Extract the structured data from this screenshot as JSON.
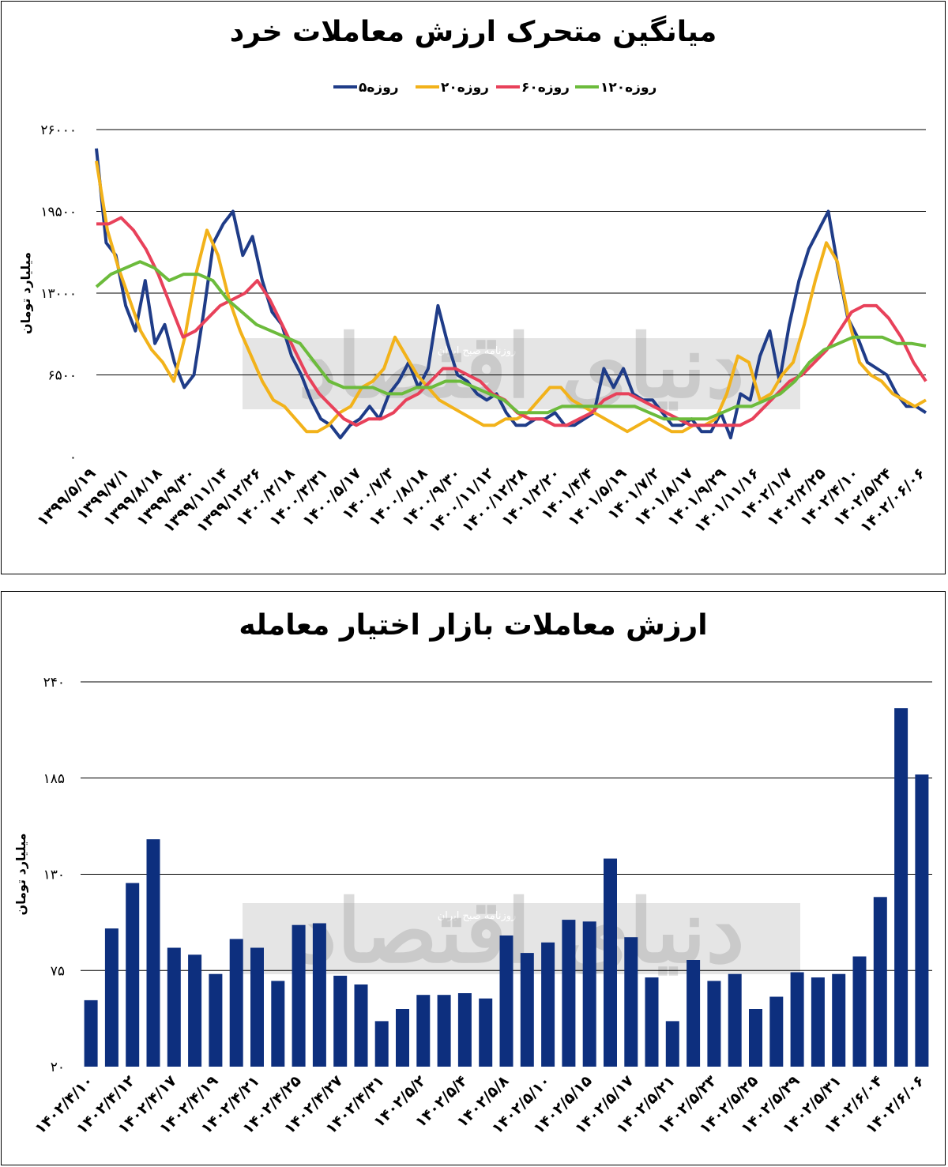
{
  "chart_data": [
    {
      "type": "line",
      "title": "میانگین متحرک ارزش معاملات خرد",
      "ylabel": "میلیارد تومان",
      "ylim": [
        0,
        26000
      ],
      "yticks": [
        0,
        6500,
        13000,
        19500,
        26000
      ],
      "ytick_labels": [
        "۰",
        "۶۵۰۰",
        "۱۳۰۰۰",
        "۱۹۵۰۰",
        "۲۶۰۰۰"
      ],
      "legend": "top",
      "grid": true,
      "x_labels": [
        "۱۳۹۹/۵/۱۹",
        "۱۳۹۹/۷/۱",
        "۱۳۹۹/۸/۱۸",
        "۱۳۹۹/۹/۳۰",
        "۱۳۹۹/۱۱/۱۴",
        "۱۳۹۹/۱۲/۲۶",
        "۱۴۰۰/۲/۱۸",
        "۱۴۰۰/۳/۳۱",
        "۱۴۰۰/۵/۱۷",
        "۱۴۰۰/۷/۳",
        "۱۴۰۰/۸/۱۸",
        "۱۴۰۰/۹/۳۰",
        "۱۴۰۰/۱۱/۱۲",
        "۱۴۰۰/۱۲/۲۸",
        "۱۴۰۱/۲/۲۰",
        "۱۴۰۱/۴/۴",
        "۱۴۰۱/۵/۱۹",
        "۱۴۰۱/۷/۲",
        "۱۴۰۱/۸/۱۷",
        "۱۴۰۱/۹/۲۹",
        "۱۴۰۱/۱۱/۱۶",
        "۱۴۰۲/۱/۷",
        "۱۴۰۲/۲/۲۵",
        "۱۴۰۲/۴/۱۰",
        "۱۴۰۲/۵/۲۴",
        "۱۴۰۲/۰۶/۰۶"
      ],
      "series": [
        {
          "name": "۵روزه",
          "color": "#1f3c88",
          "values": [
            24500,
            17000,
            16000,
            12000,
            10000,
            14000,
            9000,
            10500,
            7500,
            5500,
            6500,
            11500,
            17000,
            18500,
            19500,
            16000,
            17500,
            14000,
            11500,
            10500,
            8000,
            6500,
            4500,
            3000,
            2500,
            1500,
            2500,
            3000,
            4000,
            3000,
            5000,
            6000,
            7500,
            5500,
            7000,
            12000,
            9000,
            6500,
            6000,
            5000,
            4500,
            5000,
            3500,
            2500,
            2500,
            3000,
            3000,
            3500,
            2500,
            2500,
            3000,
            3500,
            7000,
            5500,
            7000,
            5000,
            4500,
            4500,
            3500,
            2500,
            2500,
            3000,
            2000,
            2000,
            3500,
            1500,
            5000,
            4500,
            8000,
            10000,
            6000,
            10500,
            14000,
            16500,
            18000,
            19500,
            15000,
            11000,
            9500,
            7500,
            7000,
            6500,
            5000,
            4000,
            4000,
            3500
          ]
        },
        {
          "name": "۲۰روزه",
          "color": "#f2b21a",
          "values": [
            23500,
            18000,
            15000,
            12500,
            10000,
            8500,
            7500,
            6000,
            9500,
            14500,
            18000,
            16000,
            12500,
            10000,
            8000,
            6000,
            4500,
            4000,
            3000,
            2000,
            2000,
            2500,
            3500,
            4000,
            5500,
            6000,
            7000,
            9500,
            8000,
            6500,
            5500,
            4500,
            4000,
            3500,
            3000,
            2500,
            2500,
            3000,
            3000,
            3500,
            4500,
            5500,
            5500,
            4500,
            4000,
            3500,
            3000,
            2500,
            2000,
            2500,
            3000,
            2500,
            2000,
            2000,
            2500,
            2500,
            3000,
            5000,
            8000,
            7500,
            4500,
            5000,
            6500,
            7500,
            10500,
            14000,
            17000,
            15500,
            11000,
            7500,
            6500,
            6000,
            5000,
            4500,
            4000,
            4500
          ]
        },
        {
          "name": "۶۰روزه",
          "color": "#e8415a",
          "values": [
            18500,
            18500,
            19000,
            18000,
            16500,
            14500,
            12000,
            9500,
            10000,
            11000,
            12000,
            12500,
            13000,
            14000,
            12500,
            10500,
            8500,
            6500,
            5000,
            4000,
            3000,
            2500,
            3000,
            3000,
            3500,
            4500,
            5000,
            6000,
            7000,
            7000,
            6500,
            6000,
            5000,
            4500,
            3500,
            3000,
            3000,
            2500,
            2500,
            3000,
            3500,
            4500,
            5000,
            5000,
            4500,
            4000,
            3500,
            3000,
            2500,
            2500,
            2500,
            2500,
            2500,
            3000,
            4000,
            5000,
            6000,
            6500,
            7500,
            8500,
            10000,
            11500,
            12000,
            12000,
            11000,
            9500,
            7500,
            6000
          ]
        },
        {
          "name": "۱۲۰روزه",
          "color": "#6cbb3c",
          "values": [
            13500,
            14500,
            15000,
            15500,
            15000,
            14000,
            14500,
            14500,
            14000,
            12500,
            11500,
            10500,
            10000,
            9500,
            9000,
            7500,
            6000,
            5500,
            5500,
            5500,
            5000,
            5000,
            5500,
            5500,
            6000,
            6000,
            5500,
            5000,
            4500,
            3500,
            3500,
            3500,
            4000,
            4000,
            4000,
            4000,
            4000,
            4000,
            3500,
            3000,
            3000,
            3000,
            3000,
            3500,
            4000,
            4000,
            4500,
            5000,
            6000,
            7500,
            8500,
            9000,
            9500,
            9500,
            9500,
            9000,
            9000,
            8800
          ]
        }
      ]
    },
    {
      "type": "bar",
      "title": "ارزش معاملات بازار اختیار معامله",
      "ylabel": "میلیارد تومان",
      "ylim": [
        20,
        240
      ],
      "yticks": [
        20,
        75,
        130,
        185,
        240
      ],
      "ytick_labels": [
        "۲۰",
        "۷۵",
        "۱۳۰",
        "۱۸۵",
        "۲۴۰"
      ],
      "grid": true,
      "color": "#0d2f7e",
      "x_labels": [
        "۱۴۰۲/۴/۱۰",
        "۱۴۰۲/۴/۱۲",
        "۱۴۰۲/۴/۱۷",
        "۱۴۰۲/۴/۱۹",
        "۱۴۰۲/۴/۲۱",
        "۱۴۰۲/۴/۲۵",
        "۱۴۰۲/۴/۲۷",
        "۱۴۰۲/۴/۳۱",
        "۱۴۰۲/۵/۲",
        "۱۴۰۲/۵/۴",
        "۱۴۰۲/۵/۸",
        "۱۴۰۲/۵/۱۰",
        "۱۴۰۲/۵/۱۵",
        "۱۴۰۲/۵/۱۷",
        "۱۴۰۲/۵/۲۱",
        "۱۴۰۲/۵/۲۳",
        "۱۴۰۲/۵/۲۵",
        "۱۴۰۲/۵/۲۹",
        "۱۴۰۲/۵/۳۱",
        "۱۴۰۲/۶/۰۴",
        "۱۴۰۲/۶/۰۶"
      ],
      "values": [
        58,
        99,
        125,
        150,
        88,
        84,
        73,
        93,
        88,
        69,
        101,
        102,
        72,
        67,
        46,
        53,
        61,
        61,
        62,
        59,
        95,
        85,
        91,
        104,
        103,
        139,
        94,
        71,
        46,
        81,
        69,
        73,
        53,
        60,
        74,
        71,
        73,
        83,
        117,
        225,
        187
      ]
    }
  ],
  "watermark": {
    "brand": "دنیای اقتصاد",
    "credit": "روزنامه صبح ایران"
  }
}
